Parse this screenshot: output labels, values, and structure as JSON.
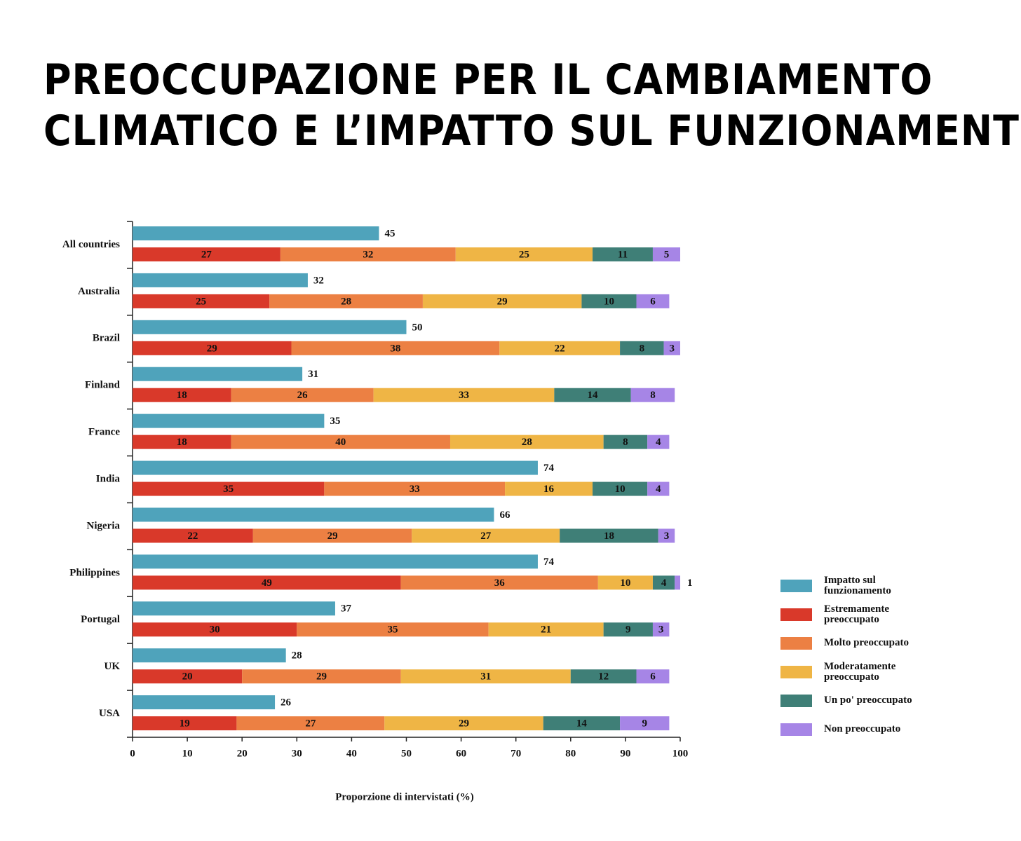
{
  "chart_data": {
    "type": "bar",
    "title": [
      "PREOCCUPAZIONE PER IL CAMBIAMENTO",
      "CLIMATICO E L’IMPATTO SUL FUNZIONAMENTO"
    ],
    "x_label": "Proporzione di intervistati (%)",
    "categories": [
      "All countries",
      "Australia",
      "Brazil",
      "Finland",
      "France",
      "India",
      "Nigeria",
      "Philippines",
      "Portugal",
      "UK",
      "USA"
    ],
    "series": [
      {
        "name": "Impatto sul funzionamento",
        "color": "#4fa3bb",
        "values": [
          45,
          32,
          50,
          31,
          35,
          74,
          66,
          74,
          37,
          28,
          26
        ]
      },
      {
        "name": "Estremamente preoccupato",
        "color": "#d9392a",
        "values": [
          27,
          25,
          29,
          18,
          18,
          35,
          22,
          49,
          30,
          20,
          19
        ]
      },
      {
        "name": "Molto preoccupato",
        "color": "#ec8043",
        "values": [
          32,
          28,
          38,
          26,
          40,
          33,
          29,
          36,
          35,
          29,
          27
        ]
      },
      {
        "name": "Moderatamente preoccupato",
        "color": "#efb545",
        "values": [
          25,
          29,
          22,
          33,
          28,
          16,
          27,
          10,
          21,
          31,
          29
        ]
      },
      {
        "name": "Un po' preoccupato",
        "color": "#3f7f77",
        "values": [
          11,
          10,
          8,
          14,
          8,
          10,
          18,
          4,
          9,
          12,
          14
        ]
      },
      {
        "name": "Non preoccupato",
        "color": "#a685e6",
        "values": [
          5,
          6,
          3,
          8,
          4,
          4,
          3,
          1,
          3,
          6,
          9
        ]
      }
    ],
    "xlim": [
      0,
      100
    ],
    "xticks": [
      0,
      10,
      20,
      30,
      40,
      50,
      60,
      70,
      80,
      90,
      100
    ],
    "legend": "right"
  }
}
